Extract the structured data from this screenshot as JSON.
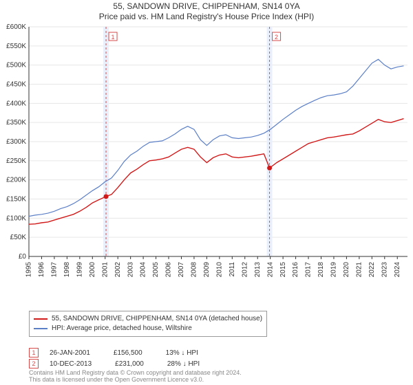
{
  "title_line1": "55, SANDOWN DRIVE, CHIPPENHAM, SN14 0YA",
  "title_line2": "Price paid vs. HM Land Registry's House Price Index (HPI)",
  "chart": {
    "type": "line",
    "background_color": "#ffffff",
    "grid_color": "#e6e6e6",
    "axis_text_color": "#333333",
    "axis_fontsize": 10,
    "x_years": [
      1995,
      1996,
      1997,
      1998,
      1999,
      2000,
      2001,
      2002,
      2003,
      2004,
      2005,
      2006,
      2007,
      2008,
      2009,
      2010,
      2011,
      2012,
      2013,
      2014,
      2015,
      2016,
      2017,
      2018,
      2019,
      2020,
      2021,
      2022,
      2023,
      2024
    ],
    "xlim": [
      1995,
      2024.8
    ],
    "ylim": [
      0,
      600000
    ],
    "ytick_step": 50000,
    "y_ticks": [
      0,
      50000,
      100000,
      150000,
      200000,
      250000,
      300000,
      350000,
      400000,
      450000,
      500000,
      550000,
      600000
    ],
    "y_tick_labels": [
      "£0",
      "£50K",
      "£100K",
      "£150K",
      "£200K",
      "£250K",
      "£300K",
      "£350K",
      "£400K",
      "£450K",
      "£500K",
      "£550K",
      "£600K"
    ],
    "marker_band_color": "#eaf0fb",
    "marker_line_color": "#d64a4a",
    "marker_line_dash": "3,3",
    "series": [
      {
        "name": "red",
        "legend": "55, SANDOWN DRIVE, CHIPPENHAM, SN14 0YA (detached house)",
        "color": "#d11919",
        "line_width": 1.4,
        "points": [
          [
            1995.0,
            84000
          ],
          [
            1995.5,
            85000
          ],
          [
            1996.0,
            88000
          ],
          [
            1996.5,
            90000
          ],
          [
            1997.0,
            95000
          ],
          [
            1997.5,
            100000
          ],
          [
            1998.0,
            105000
          ],
          [
            1998.5,
            110000
          ],
          [
            1999.0,
            118000
          ],
          [
            1999.5,
            128000
          ],
          [
            2000.0,
            140000
          ],
          [
            2000.5,
            148000
          ],
          [
            2001.07,
            156500
          ],
          [
            2001.5,
            162000
          ],
          [
            2002.0,
            180000
          ],
          [
            2002.5,
            200000
          ],
          [
            2003.0,
            218000
          ],
          [
            2003.5,
            228000
          ],
          [
            2004.0,
            240000
          ],
          [
            2004.5,
            250000
          ],
          [
            2005.0,
            252000
          ],
          [
            2005.5,
            255000
          ],
          [
            2006.0,
            260000
          ],
          [
            2006.5,
            270000
          ],
          [
            2007.0,
            280000
          ],
          [
            2007.5,
            285000
          ],
          [
            2008.0,
            280000
          ],
          [
            2008.5,
            260000
          ],
          [
            2009.0,
            245000
          ],
          [
            2009.5,
            258000
          ],
          [
            2010.0,
            265000
          ],
          [
            2010.5,
            268000
          ],
          [
            2011.0,
            260000
          ],
          [
            2011.5,
            258000
          ],
          [
            2012.0,
            260000
          ],
          [
            2012.5,
            262000
          ],
          [
            2013.0,
            265000
          ],
          [
            2013.5,
            268000
          ],
          [
            2013.94,
            231000
          ],
          [
            2014.5,
            245000
          ],
          [
            2015.0,
            255000
          ],
          [
            2015.5,
            265000
          ],
          [
            2016.0,
            275000
          ],
          [
            2016.5,
            285000
          ],
          [
            2017.0,
            295000
          ],
          [
            2017.5,
            300000
          ],
          [
            2018.0,
            305000
          ],
          [
            2018.5,
            310000
          ],
          [
            2019.0,
            312000
          ],
          [
            2019.5,
            315000
          ],
          [
            2020.0,
            318000
          ],
          [
            2020.5,
            320000
          ],
          [
            2021.0,
            328000
          ],
          [
            2021.5,
            338000
          ],
          [
            2022.0,
            348000
          ],
          [
            2022.5,
            358000
          ],
          [
            2023.0,
            352000
          ],
          [
            2023.5,
            350000
          ],
          [
            2024.0,
            355000
          ],
          [
            2024.5,
            360000
          ]
        ]
      },
      {
        "name": "blue",
        "legend": "HPI: Average price, detached house, Wiltshire",
        "color": "#5b7fc7",
        "line_width": 1.2,
        "points": [
          [
            1995.0,
            105000
          ],
          [
            1995.5,
            108000
          ],
          [
            1996.0,
            110000
          ],
          [
            1996.5,
            113000
          ],
          [
            1997.0,
            118000
          ],
          [
            1997.5,
            125000
          ],
          [
            1998.0,
            130000
          ],
          [
            1998.5,
            138000
          ],
          [
            1999.0,
            148000
          ],
          [
            1999.5,
            160000
          ],
          [
            2000.0,
            172000
          ],
          [
            2000.5,
            182000
          ],
          [
            2001.0,
            195000
          ],
          [
            2001.5,
            205000
          ],
          [
            2002.0,
            225000
          ],
          [
            2002.5,
            248000
          ],
          [
            2003.0,
            265000
          ],
          [
            2003.5,
            275000
          ],
          [
            2004.0,
            288000
          ],
          [
            2004.5,
            298000
          ],
          [
            2005.0,
            300000
          ],
          [
            2005.5,
            302000
          ],
          [
            2006.0,
            310000
          ],
          [
            2006.5,
            320000
          ],
          [
            2007.0,
            332000
          ],
          [
            2007.5,
            340000
          ],
          [
            2008.0,
            332000
          ],
          [
            2008.5,
            305000
          ],
          [
            2009.0,
            290000
          ],
          [
            2009.5,
            305000
          ],
          [
            2010.0,
            315000
          ],
          [
            2010.5,
            318000
          ],
          [
            2011.0,
            310000
          ],
          [
            2011.5,
            308000
          ],
          [
            2012.0,
            310000
          ],
          [
            2012.5,
            312000
          ],
          [
            2013.0,
            316000
          ],
          [
            2013.5,
            322000
          ],
          [
            2014.0,
            332000
          ],
          [
            2014.5,
            345000
          ],
          [
            2015.0,
            358000
          ],
          [
            2015.5,
            370000
          ],
          [
            2016.0,
            382000
          ],
          [
            2016.5,
            392000
          ],
          [
            2017.0,
            400000
          ],
          [
            2017.5,
            408000
          ],
          [
            2018.0,
            415000
          ],
          [
            2018.5,
            420000
          ],
          [
            2019.0,
            422000
          ],
          [
            2019.5,
            425000
          ],
          [
            2020.0,
            430000
          ],
          [
            2020.5,
            445000
          ],
          [
            2021.0,
            465000
          ],
          [
            2021.5,
            485000
          ],
          [
            2022.0,
            505000
          ],
          [
            2022.5,
            515000
          ],
          [
            2023.0,
            500000
          ],
          [
            2023.5,
            490000
          ],
          [
            2024.0,
            495000
          ],
          [
            2024.5,
            498000
          ]
        ]
      }
    ],
    "sale_markers": [
      {
        "index": 1,
        "year": 2001.07,
        "price": 156500
      },
      {
        "index": 2,
        "year": 2013.94,
        "price": 231000
      }
    ]
  },
  "sales_rows": [
    {
      "index": "1",
      "date": "26-JAN-2001",
      "price": "£156,500",
      "delta": "13% ↓ HPI"
    },
    {
      "index": "2",
      "date": "10-DEC-2013",
      "price": "£231,000",
      "delta": "28% ↓ HPI"
    }
  ],
  "footnote_line1": "Contains HM Land Registry data © Crown copyright and database right 2024.",
  "footnote_line2": "This data is licensed under the Open Government Licence v3.0.",
  "marker_box_border": "#d64a4a",
  "marker_box_text": "#d64a4a"
}
